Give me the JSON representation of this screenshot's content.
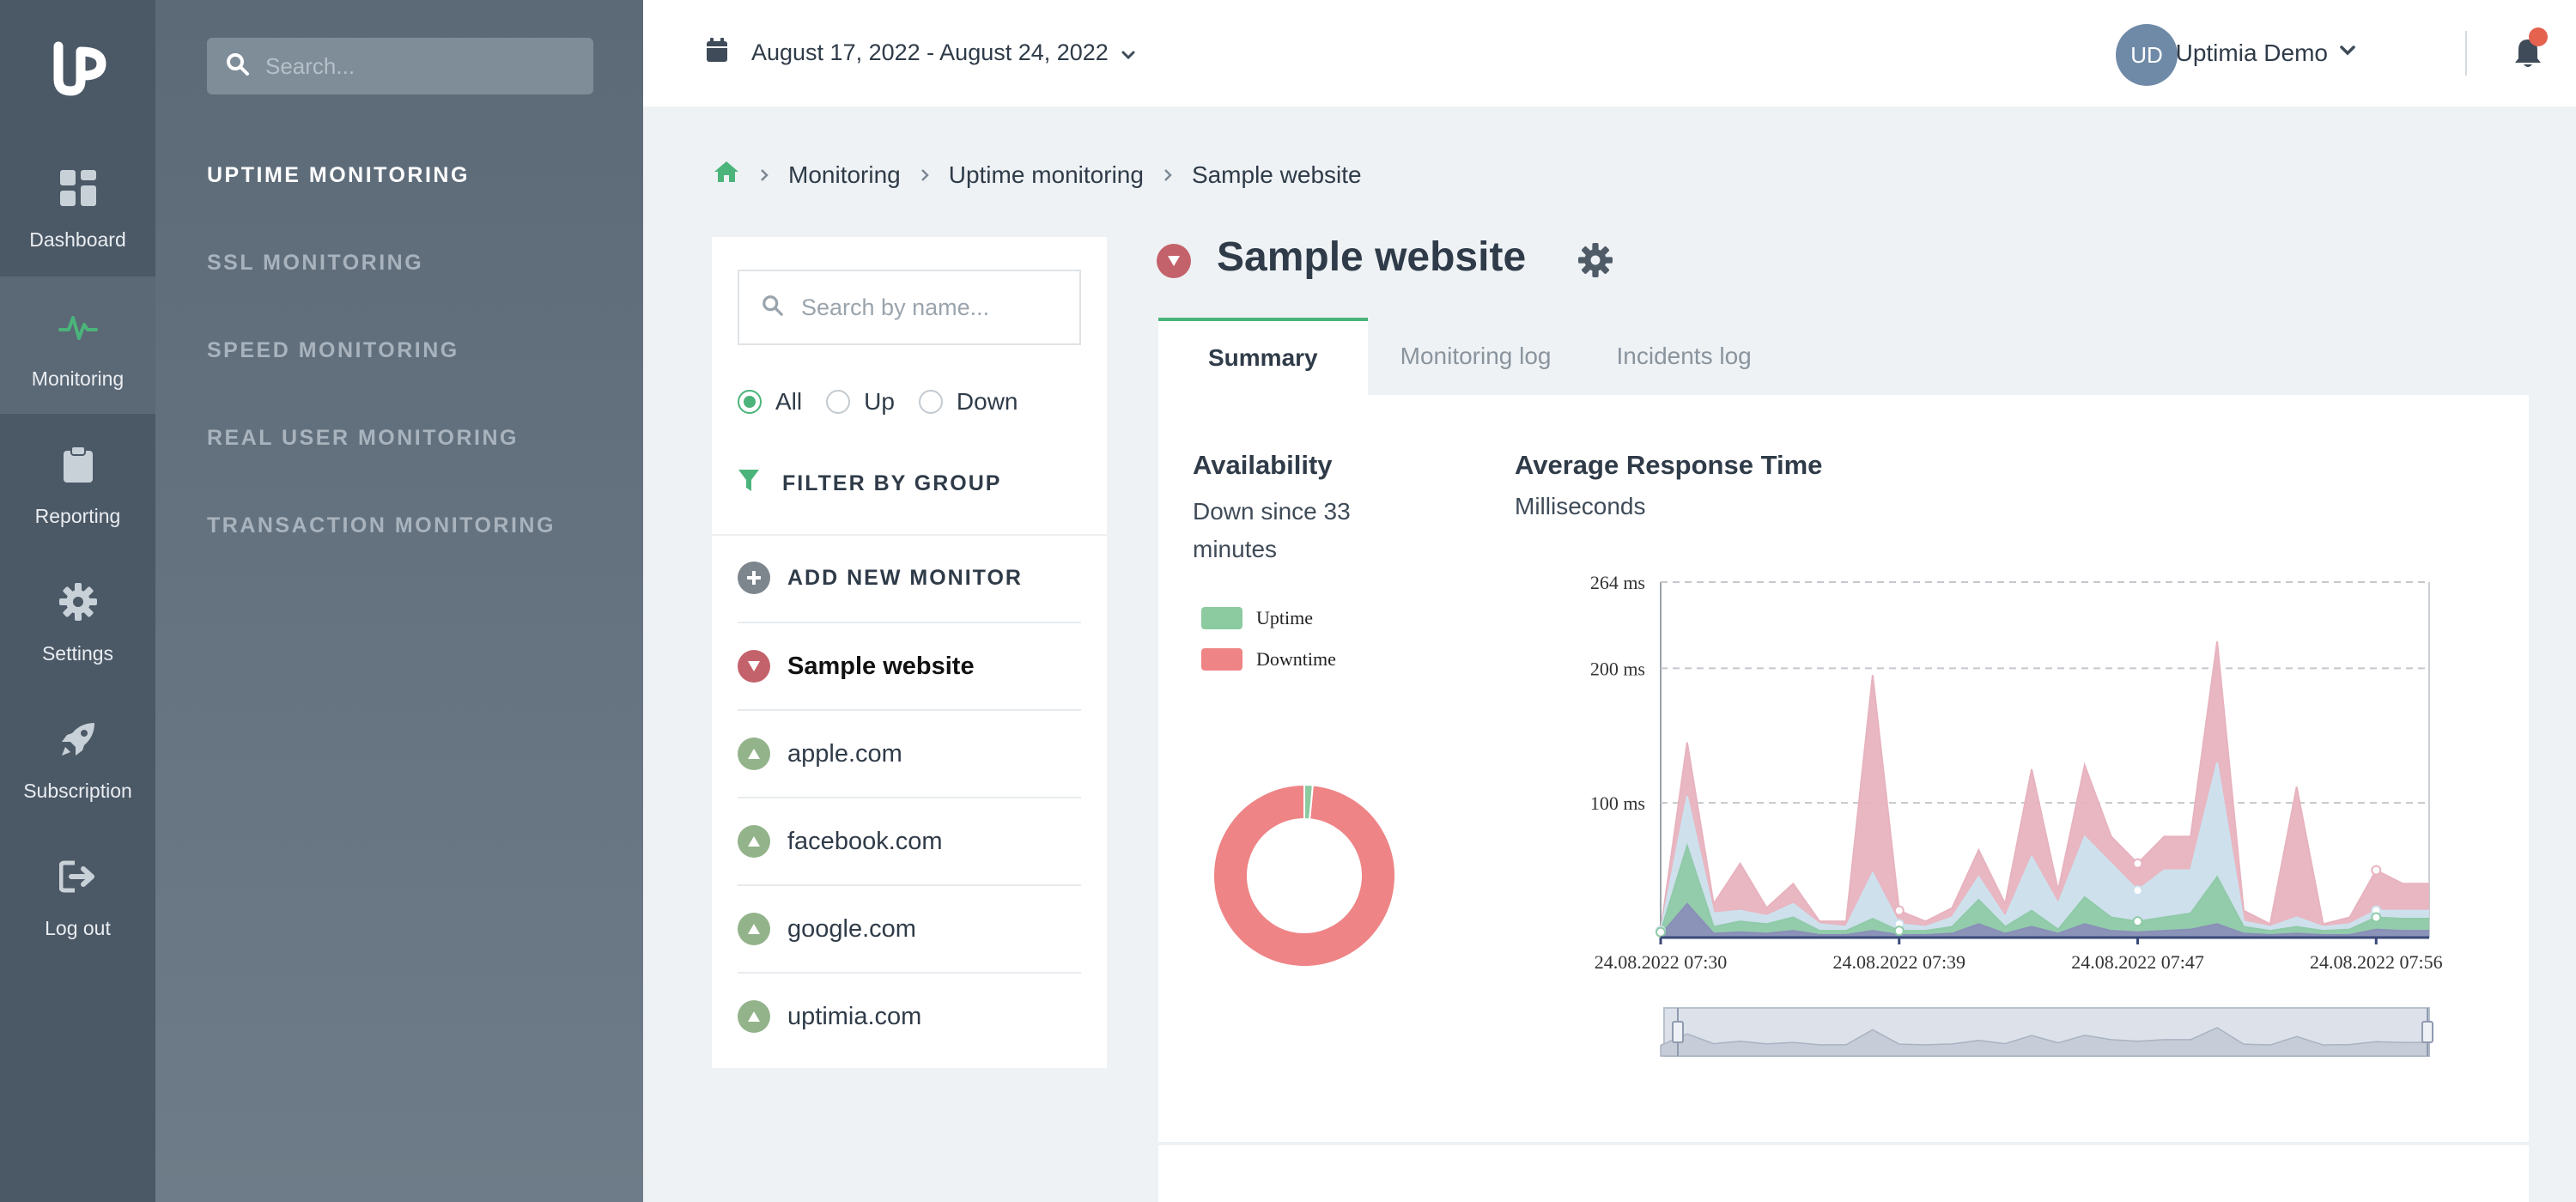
{
  "rail": {
    "items": [
      {
        "label": "Dashboard",
        "icon": "dashboard-icon"
      },
      {
        "label": "Monitoring",
        "icon": "pulse-icon",
        "active": true
      },
      {
        "label": "Reporting",
        "icon": "clipboard-icon"
      },
      {
        "label": "Settings",
        "icon": "gear-icon"
      },
      {
        "label": "Subscription",
        "icon": "rocket-icon"
      },
      {
        "label": "Log out",
        "icon": "logout-icon"
      }
    ]
  },
  "submenu": {
    "search_placeholder": "Search...",
    "links": [
      "UPTIME MONITORING",
      "SSL MONITORING",
      "SPEED MONITORING",
      "REAL USER MONITORING",
      "TRANSACTION MONITORING"
    ],
    "active_index": 0
  },
  "topbar": {
    "date_range": "August 17, 2022 - August 24, 2022",
    "avatar_initials": "UD",
    "user_name": "Uptimia Demo"
  },
  "breadcrumb": [
    "Monitoring",
    "Uptime monitoring",
    "Sample website"
  ],
  "list": {
    "search_placeholder": "Search by name...",
    "filters": [
      {
        "label": "All",
        "checked": true
      },
      {
        "label": "Up",
        "checked": false
      },
      {
        "label": "Down",
        "checked": false
      }
    ],
    "filter_group_label": "FILTER BY GROUP",
    "add_label": "ADD NEW MONITOR",
    "monitors": [
      {
        "name": "Sample website",
        "status": "down",
        "selected": true
      },
      {
        "name": "apple.com",
        "status": "up"
      },
      {
        "name": "facebook.com",
        "status": "up"
      },
      {
        "name": "google.com",
        "status": "up"
      },
      {
        "name": "uptimia.com",
        "status": "up"
      }
    ]
  },
  "detail": {
    "title": "Sample website",
    "status": "down",
    "tabs": [
      "Summary",
      "Monitoring log",
      "Incidents log"
    ],
    "active_tab": 0,
    "availability": {
      "title": "Availability",
      "subtitle": "Down since 33 minutes",
      "legend": [
        {
          "label": "Uptime",
          "color": "#8ccaa0"
        },
        {
          "label": "Downtime",
          "color": "#ee8486"
        }
      ]
    },
    "response": {
      "title": "Average Response Time",
      "subtitle": "Milliseconds"
    }
  },
  "colors": {
    "accent_green": "#4bb47a",
    "down_red": "#c4626b",
    "up_green": "#93b38b"
  },
  "chart_data": [
    {
      "type": "pie",
      "categories": [
        "Uptime",
        "Downtime"
      ],
      "values": [
        1.5,
        98.5
      ],
      "colors": [
        "#8ccaa0",
        "#ee8486"
      ],
      "legend": "top-left"
    },
    {
      "type": "area",
      "ylim": [
        0,
        264
      ],
      "yticks": [
        {
          "value": 100,
          "label": "100 ms"
        },
        {
          "value": 200,
          "label": "200 ms"
        },
        {
          "value": 264,
          "label": "264 ms"
        }
      ],
      "xticks": [
        {
          "index": 0,
          "label": "24.08.2022 07:30"
        },
        {
          "index": 9,
          "label": "24.08.2022 07:39"
        },
        {
          "index": 18,
          "label": "24.08.2022 07:47"
        },
        {
          "index": 27,
          "label": "24.08.2022 07:56"
        }
      ],
      "grid": true,
      "series": [
        {
          "color": "#e7b3bf",
          "values": [
            5,
            145,
            25,
            55,
            22,
            40,
            12,
            12,
            195,
            20,
            12,
            22,
            65,
            25,
            125,
            35,
            128,
            75,
            55,
            75,
            75,
            220,
            20,
            10,
            112,
            10,
            15,
            50,
            40,
            40
          ]
        },
        {
          "color": "#cce2ee",
          "values": [
            5,
            105,
            18,
            20,
            16,
            25,
            10,
            8,
            48,
            10,
            8,
            15,
            45,
            15,
            60,
            25,
            75,
            55,
            35,
            50,
            50,
            130,
            12,
            8,
            15,
            8,
            10,
            20,
            20,
            20
          ]
        },
        {
          "color": "#8fcaa8",
          "values": [
            4,
            68,
            8,
            12,
            10,
            15,
            5,
            5,
            14,
            5,
            5,
            8,
            28,
            8,
            20,
            6,
            30,
            15,
            12,
            15,
            18,
            45,
            8,
            5,
            8,
            5,
            6,
            15,
            14,
            14
          ]
        },
        {
          "color": "#8a8fb8",
          "values": [
            2,
            25,
            3,
            4,
            3,
            5,
            2,
            2,
            5,
            2,
            2,
            3,
            10,
            3,
            8,
            3,
            10,
            5,
            4,
            5,
            6,
            10,
            3,
            2,
            3,
            2,
            2,
            6,
            5,
            5
          ]
        }
      ]
    }
  ]
}
